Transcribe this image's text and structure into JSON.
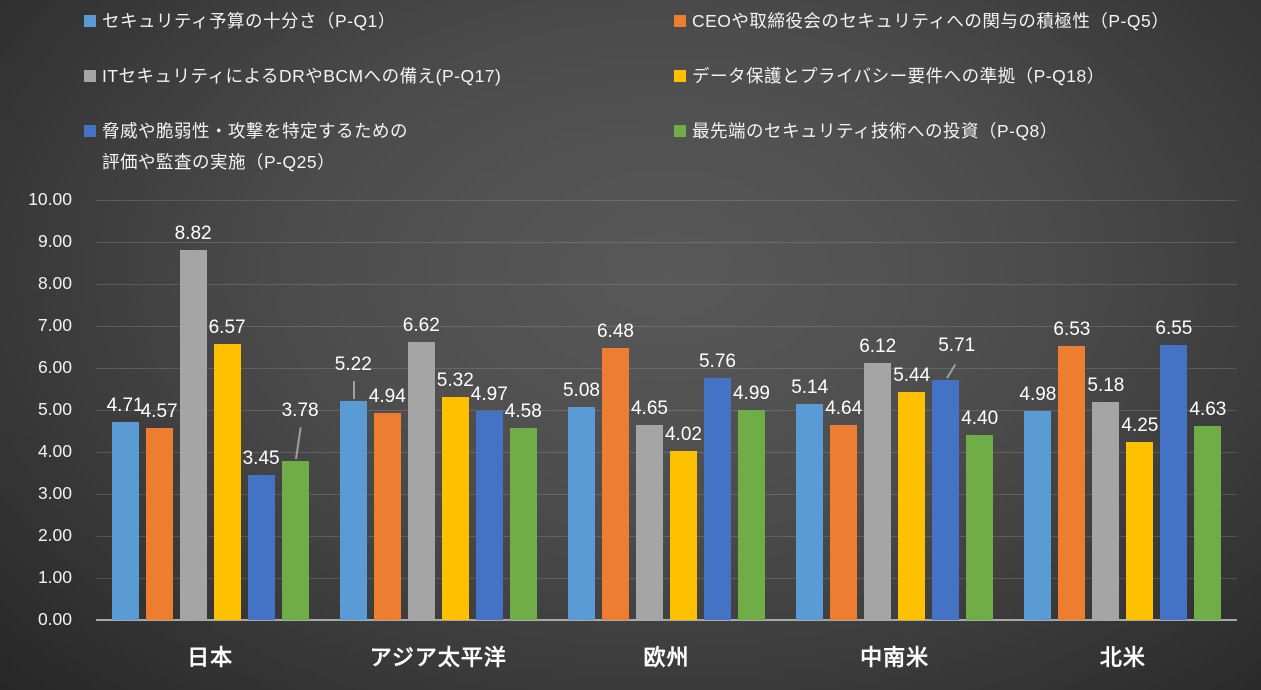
{
  "chart_data": {
    "type": "bar",
    "title": "",
    "categories": [
      "日本",
      "アジア太平洋",
      "欧州",
      "中南米",
      "北米"
    ],
    "series": [
      {
        "name": "セキュリティ予算の十分さ（P-Q1）",
        "color": "#5B9BD5",
        "values": [
          4.71,
          5.22,
          5.08,
          5.14,
          4.98
        ]
      },
      {
        "name": "CEOや取締役会のセキュリティへの関与の積極性（P-Q5）",
        "color": "#ED7D31",
        "values": [
          4.57,
          4.94,
          6.48,
          4.64,
          6.53
        ]
      },
      {
        "name": "ITセキュリティによるDRやBCMへの備え(P-Q17)",
        "color": "#A5A5A5",
        "values": [
          8.82,
          6.62,
          4.65,
          6.12,
          5.18
        ]
      },
      {
        "name": "データ保護とプライバシー要件への準拠（P-Q18）",
        "color": "#FFC000",
        "values": [
          6.57,
          5.32,
          4.02,
          5.44,
          4.25
        ]
      },
      {
        "name": "脅威や脆弱性・攻撃を特定するための\n評価や監査の実施（P-Q25）",
        "color": "#4472C4",
        "values": [
          3.45,
          4.97,
          5.76,
          5.71,
          6.55
        ]
      },
      {
        "name": "最先端のセキュリティ技術への投資（P-Q8）",
        "color": "#70AD47",
        "values": [
          3.78,
          4.58,
          4.99,
          4.4,
          4.63
        ]
      }
    ],
    "ylim": [
      0,
      10
    ],
    "ytick_step": 1,
    "yticks": [
      "0.00",
      "1.00",
      "2.00",
      "3.00",
      "4.00",
      "5.00",
      "6.00",
      "7.00",
      "8.00",
      "9.00",
      "10.00"
    ],
    "xlabel": "",
    "ylabel": "",
    "grid": true,
    "legend_position": "top",
    "data_labels": true,
    "data_label_decimals": 2,
    "raised_labels": [
      {
        "series": 5,
        "category": 0,
        "rise": 34,
        "dx": 5
      },
      {
        "series": 0,
        "category": 1,
        "rise": 20,
        "dx": 0
      },
      {
        "series": 4,
        "category": 3,
        "rise": 18,
        "dx": 11
      }
    ],
    "background": {
      "center": "#595959",
      "edge": "#212121"
    },
    "axis_text_color": "#f2f2f2",
    "gridline_color": "rgba(255,255,255,0.14)",
    "axis_line_color": "#a8a8a8"
  }
}
